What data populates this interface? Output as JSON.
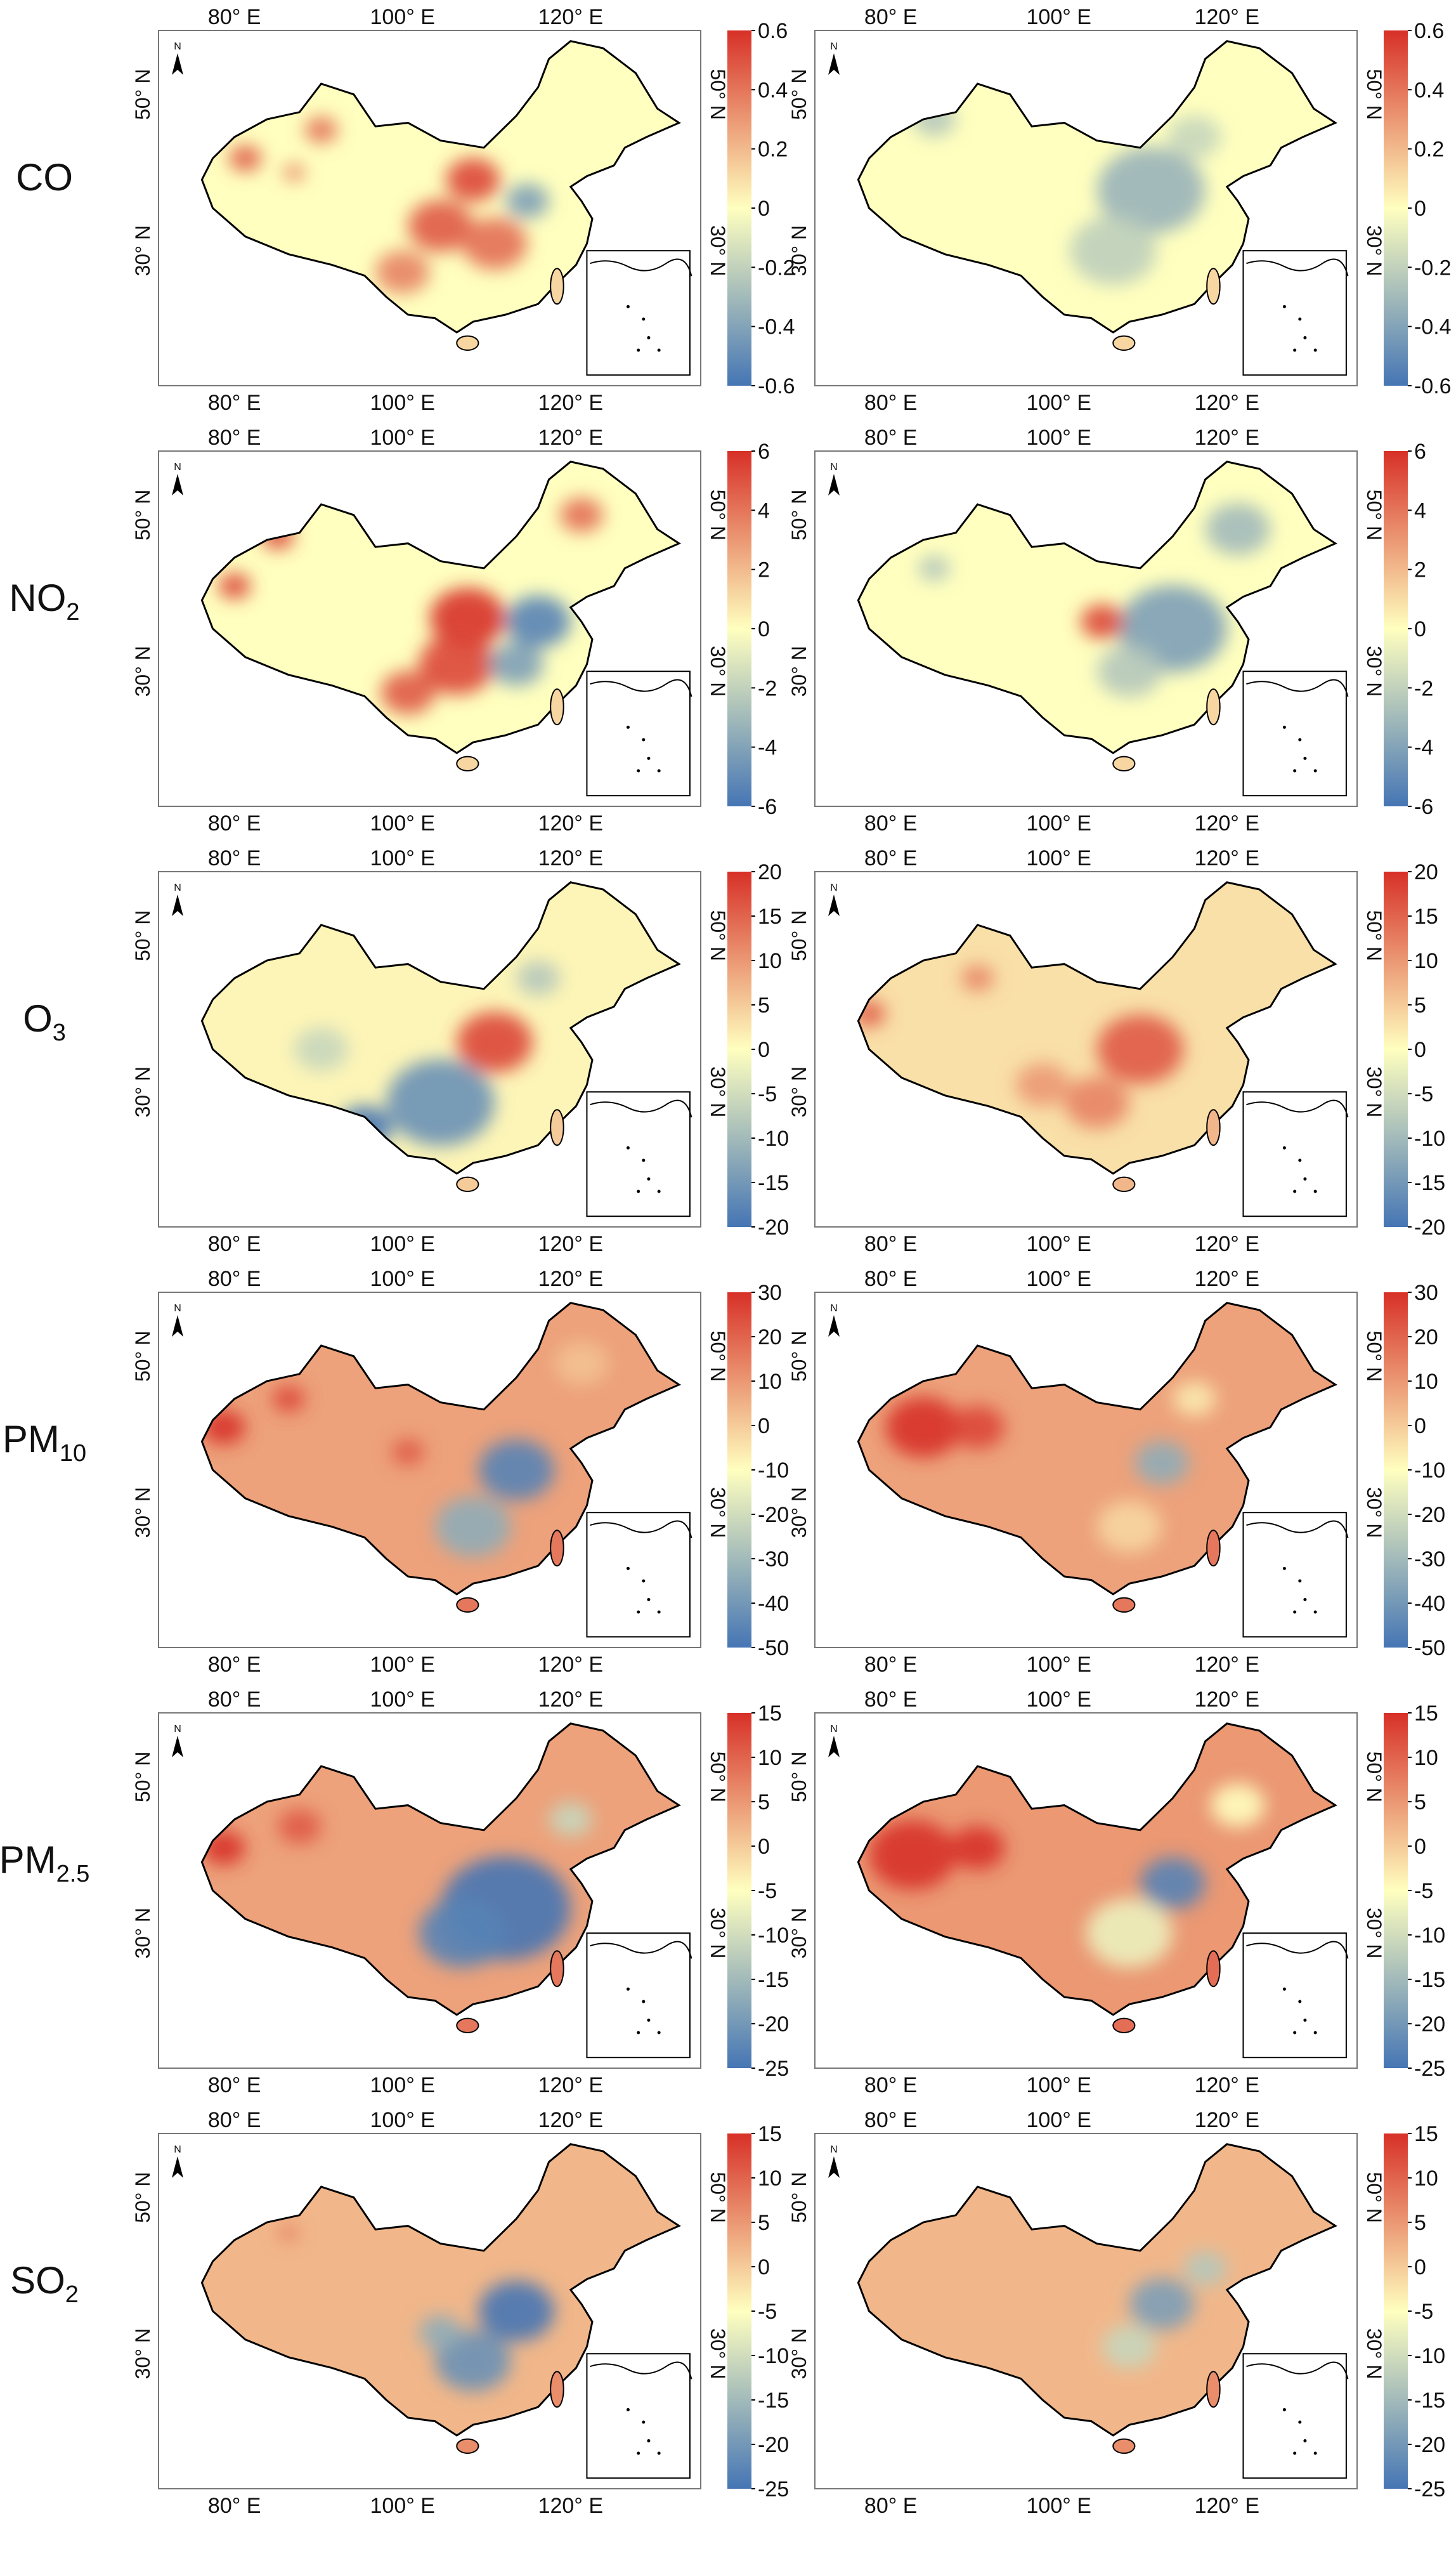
{
  "figure": {
    "colors": {
      "high": "#d73027",
      "mid": "#ffffbf",
      "low": "#4575b4"
    },
    "north_label": "N",
    "lon_ticks": [
      "80° E",
      "100° E",
      "120° E"
    ],
    "lat_ticks": [
      "30° N",
      "50° N"
    ]
  },
  "chart_data": [
    {
      "type": "heatmap",
      "row_label": {
        "main": "CO",
        "sub": ""
      },
      "column": "left",
      "colorbar": {
        "range": [
          -0.6,
          0.6
        ],
        "ticks": [
          "0.6",
          "0.4",
          "0.2",
          "0",
          "-0.2",
          "-0.4",
          "-0.6"
        ]
      }
    },
    {
      "type": "heatmap",
      "row_label": {
        "main": "CO",
        "sub": ""
      },
      "column": "right",
      "colorbar": {
        "range": [
          -0.6,
          0.6
        ],
        "ticks": [
          "0.6",
          "0.4",
          "0.2",
          "0",
          "-0.2",
          "-0.4",
          "-0.6"
        ]
      }
    },
    {
      "type": "heatmap",
      "row_label": {
        "main": "NO",
        "sub": "2"
      },
      "column": "left",
      "colorbar": {
        "range": [
          -6,
          6
        ],
        "ticks": [
          "6",
          "4",
          "2",
          "0",
          "-2",
          "-4",
          "-6"
        ]
      }
    },
    {
      "type": "heatmap",
      "row_label": {
        "main": "NO",
        "sub": "2"
      },
      "column": "right",
      "colorbar": {
        "range": [
          -6,
          6
        ],
        "ticks": [
          "6",
          "4",
          "2",
          "0",
          "-2",
          "-4",
          "-6"
        ]
      }
    },
    {
      "type": "heatmap",
      "row_label": {
        "main": "O",
        "sub": "3"
      },
      "column": "left",
      "colorbar": {
        "range": [
          -20,
          20
        ],
        "ticks": [
          "20",
          "15",
          "10",
          "5",
          "0",
          "-5",
          "-10",
          "-15",
          "-20"
        ]
      }
    },
    {
      "type": "heatmap",
      "row_label": {
        "main": "O",
        "sub": "3"
      },
      "column": "right",
      "colorbar": {
        "range": [
          -20,
          20
        ],
        "ticks": [
          "20",
          "15",
          "10",
          "5",
          "0",
          "-5",
          "-10",
          "-15",
          "-20"
        ]
      }
    },
    {
      "type": "heatmap",
      "row_label": {
        "main": "PM",
        "sub": "10"
      },
      "column": "left",
      "colorbar": {
        "range": [
          -50,
          30
        ],
        "ticks": [
          "30",
          "20",
          "10",
          "0",
          "-10",
          "-20",
          "-30",
          "-40",
          "-50"
        ]
      }
    },
    {
      "type": "heatmap",
      "row_label": {
        "main": "PM",
        "sub": "10"
      },
      "column": "right",
      "colorbar": {
        "range": [
          -50,
          30
        ],
        "ticks": [
          "30",
          "20",
          "10",
          "0",
          "-10",
          "-20",
          "-30",
          "-40",
          "-50"
        ]
      }
    },
    {
      "type": "heatmap",
      "row_label": {
        "main": "PM",
        "sub": "2.5"
      },
      "column": "left",
      "colorbar": {
        "range": [
          -25,
          15
        ],
        "ticks": [
          "15",
          "10",
          "5",
          "0",
          "-5",
          "-10",
          "-15",
          "-20",
          "-25"
        ]
      }
    },
    {
      "type": "heatmap",
      "row_label": {
        "main": "PM",
        "sub": "2.5"
      },
      "column": "right",
      "colorbar": {
        "range": [
          -25,
          15
        ],
        "ticks": [
          "15",
          "10",
          "5",
          "0",
          "-5",
          "-10",
          "-15",
          "-20",
          "-25"
        ]
      }
    },
    {
      "type": "heatmap",
      "row_label": {
        "main": "SO",
        "sub": "2"
      },
      "column": "left",
      "colorbar": {
        "range": [
          -25,
          15
        ],
        "ticks": [
          "15",
          "10",
          "5",
          "0",
          "-5",
          "-10",
          "-15",
          "-20",
          "-25"
        ]
      }
    },
    {
      "type": "heatmap",
      "row_label": {
        "main": "SO",
        "sub": "2"
      },
      "column": "right",
      "colorbar": {
        "range": [
          -25,
          15
        ],
        "ticks": [
          "15",
          "10",
          "5",
          "0",
          "-5",
          "-10",
          "-15",
          "-20",
          "-25"
        ]
      }
    }
  ]
}
